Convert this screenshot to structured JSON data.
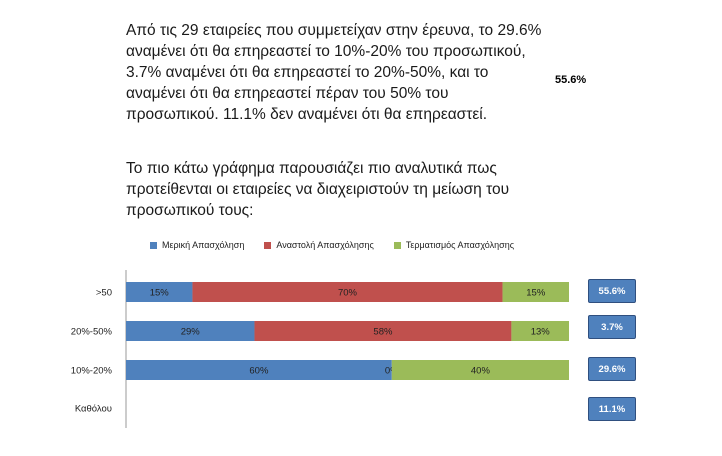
{
  "text": {
    "para1": [
      "Από τις 29 εταιρείες που συμμετείχαν στην έρευνα, το 29.6%",
      "αναμένει ότι θα επηρεαστεί το 10%-20% του προσωπικού,",
      "3.7% αναμένει ότι θα επηρεαστεί το 20%-50%, και το",
      "αναμένει ότι θα επηρεαστεί πέραν του 50% του",
      "προσωπικού. 11.1% δεν αναμένει ότι θα επηρεαστεί."
    ],
    "inline_value": "55.6%",
    "para2": [
      "Το πιο κάτω γράφημα παρουσιάζει πιο αναλυτικά πως",
      "προτείθενται οι εταιρείες να διαχειριστούν τη μείωση του",
      "προσωπικού τους:"
    ]
  },
  "chart_data": {
    "type": "bar",
    "orientation": "horizontal",
    "stacked": true,
    "categories": [
      ">50",
      "20%-50%",
      "10%-20%",
      "Καθόλου"
    ],
    "series": [
      {
        "name": "Μερική Απασχόληση",
        "color": "#4f81bd",
        "values": [
          15,
          29,
          60,
          null
        ],
        "labels": [
          "15%",
          "29%",
          "60%",
          ""
        ]
      },
      {
        "name": "Αναστολή Απασχόλησης",
        "color": "#c0504d",
        "values": [
          70,
          58,
          0,
          null
        ],
        "labels": [
          "70%",
          "58%",
          "0%",
          ""
        ]
      },
      {
        "name": "Τερματισμός Απασχόλησης",
        "color": "#9bbb59",
        "values": [
          15,
          13,
          40,
          null
        ],
        "labels": [
          "15%",
          "13%",
          "40%",
          ""
        ]
      }
    ],
    "xlim": [
      0,
      100
    ],
    "legend_position": "top",
    "side_values": [
      "55.6%",
      "3.7%",
      "29.6%",
      "11.1%"
    ],
    "side_box_color": "#4f81bd"
  }
}
